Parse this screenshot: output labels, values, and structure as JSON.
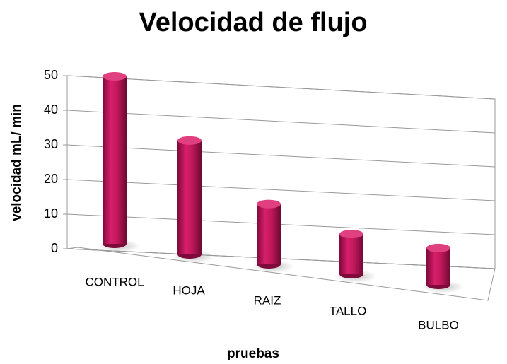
{
  "chart_data": {
    "type": "bar",
    "title": "Velocidad de flujo",
    "x_label": "pruebas",
    "y_label": "velocidad mL/ min",
    "categories": [
      "CONTROL",
      "HOJA",
      "RAIZ",
      "TALLO",
      "BULBO"
    ],
    "values": [
      50,
      34,
      18,
      12,
      11
    ],
    "color": "#c2185b",
    "ylim": [
      0,
      50
    ],
    "yticks": [
      0,
      10,
      20,
      30,
      40,
      50
    ],
    "grid": true
  }
}
